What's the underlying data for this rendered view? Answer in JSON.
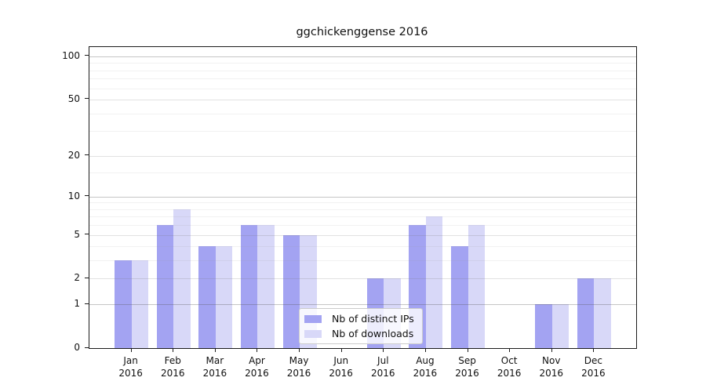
{
  "chart_data": {
    "type": "bar",
    "title": "ggchickenggense 2016",
    "year": "2016",
    "categories": [
      "Jan",
      "Feb",
      "Mar",
      "Apr",
      "May",
      "Jun",
      "Jul",
      "Aug",
      "Sep",
      "Oct",
      "Nov",
      "Dec"
    ],
    "series": [
      {
        "name": "Nb of distinct IPs",
        "color": "#a3a3f2",
        "values": [
          3,
          6,
          4,
          6,
          5,
          0,
          2,
          6,
          4,
          0,
          1,
          2
        ]
      },
      {
        "name": "Nb of downloads",
        "color": "#d8d8f8",
        "values": [
          3,
          8,
          4,
          6,
          5,
          0,
          2,
          7,
          6,
          0,
          1,
          2
        ]
      }
    ],
    "xlabel": "",
    "ylabel": "",
    "yticks": [
      0,
      1,
      2,
      5,
      10,
      20,
      50,
      100
    ],
    "decade_yticks": [
      1,
      10,
      100
    ],
    "minor_yticks": [
      3,
      4,
      6,
      7,
      8,
      9,
      15,
      30,
      40,
      60,
      70,
      80,
      90
    ],
    "scale": "log10(1+y)",
    "ylim": [
      0,
      116
    ],
    "grid": "horizontal",
    "legend_position": "inside-bottom-center",
    "colors": {
      "grid_decade": "rgba(90,90,90,0.35)",
      "grid_major": "rgba(120,120,120,0.22)",
      "grid_minor": "rgba(150,150,150,0.12)",
      "axis": "#1c1c1c",
      "background": "#ffffff"
    }
  }
}
